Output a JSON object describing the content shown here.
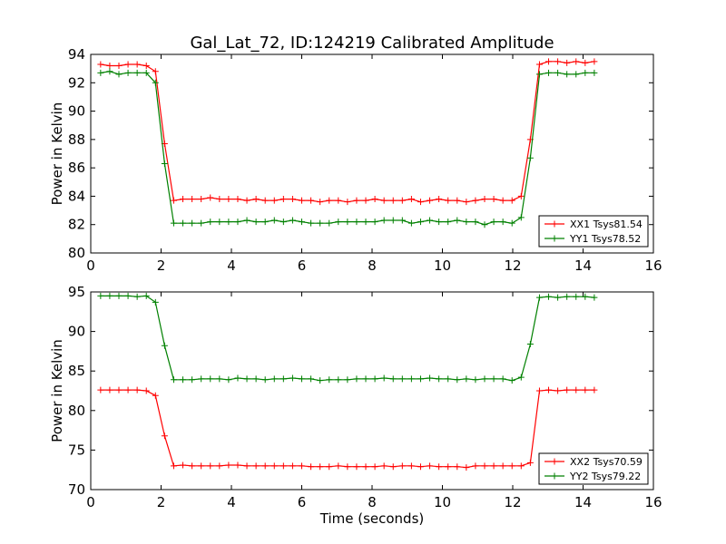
{
  "title": "Gal_Lat_72, ID:124219 Calibrated Amplitude",
  "chart_data": [
    {
      "type": "line",
      "xlabel": "",
      "ylabel": "Power in Kelvin",
      "xlim": [
        0,
        16
      ],
      "ylim": [
        80,
        94
      ],
      "xticks": [
        0,
        2,
        4,
        6,
        8,
        10,
        12,
        14,
        16
      ],
      "yticks": [
        80,
        82,
        84,
        86,
        88,
        90,
        92,
        94
      ],
      "grid": false,
      "legend_position": "bottom-right",
      "x": [
        0.28,
        0.54,
        0.8,
        1.06,
        1.32,
        1.58,
        1.84,
        2.1,
        2.36,
        2.62,
        2.88,
        3.14,
        3.4,
        3.66,
        3.92,
        4.18,
        4.44,
        4.7,
        4.96,
        5.22,
        5.48,
        5.74,
        6.0,
        6.26,
        6.52,
        6.78,
        7.04,
        7.3,
        7.56,
        7.82,
        8.08,
        8.34,
        8.6,
        8.86,
        9.12,
        9.38,
        9.64,
        9.9,
        10.16,
        10.42,
        10.68,
        10.94,
        11.2,
        11.46,
        11.72,
        11.98,
        12.24,
        12.5,
        12.76,
        13.02,
        13.28,
        13.54,
        13.8,
        14.06,
        14.32
      ],
      "series": [
        {
          "name": "XX1 Tsys81.54",
          "color": "#ff0000",
          "values": [
            93.3,
            93.2,
            93.2,
            93.3,
            93.3,
            93.2,
            92.8,
            87.7,
            83.7,
            83.8,
            83.8,
            83.8,
            83.9,
            83.8,
            83.8,
            83.8,
            83.7,
            83.8,
            83.7,
            83.7,
            83.8,
            83.8,
            83.7,
            83.7,
            83.6,
            83.7,
            83.7,
            83.6,
            83.7,
            83.7,
            83.8,
            83.7,
            83.7,
            83.7,
            83.8,
            83.6,
            83.7,
            83.8,
            83.7,
            83.7,
            83.6,
            83.7,
            83.8,
            83.8,
            83.7,
            83.7,
            84.0,
            88.0,
            93.3,
            93.5,
            93.5,
            93.4,
            93.5,
            93.4,
            93.5
          ]
        },
        {
          "name": "YY1 Tsys78.52",
          "color": "#008000",
          "values": [
            92.7,
            92.8,
            92.6,
            92.7,
            92.7,
            92.7,
            92.0,
            86.3,
            82.1,
            82.1,
            82.1,
            82.1,
            82.2,
            82.2,
            82.2,
            82.2,
            82.3,
            82.2,
            82.2,
            82.3,
            82.2,
            82.3,
            82.2,
            82.1,
            82.1,
            82.1,
            82.2,
            82.2,
            82.2,
            82.2,
            82.2,
            82.3,
            82.3,
            82.3,
            82.1,
            82.2,
            82.3,
            82.2,
            82.2,
            82.3,
            82.2,
            82.2,
            82.0,
            82.2,
            82.2,
            82.1,
            82.5,
            86.7,
            92.6,
            92.7,
            92.7,
            92.6,
            92.6,
            92.7,
            92.7
          ]
        }
      ]
    },
    {
      "type": "line",
      "xlabel": "Time (seconds)",
      "ylabel": "Power in Kelvin",
      "xlim": [
        0,
        16
      ],
      "ylim": [
        70,
        95
      ],
      "xticks": [
        0,
        2,
        4,
        6,
        8,
        10,
        12,
        14,
        16
      ],
      "yticks": [
        70,
        75,
        80,
        85,
        90,
        95
      ],
      "grid": false,
      "legend_position": "bottom-right",
      "x": [
        0.28,
        0.54,
        0.8,
        1.06,
        1.32,
        1.58,
        1.84,
        2.1,
        2.36,
        2.62,
        2.88,
        3.14,
        3.4,
        3.66,
        3.92,
        4.18,
        4.44,
        4.7,
        4.96,
        5.22,
        5.48,
        5.74,
        6.0,
        6.26,
        6.52,
        6.78,
        7.04,
        7.3,
        7.56,
        7.82,
        8.08,
        8.34,
        8.6,
        8.86,
        9.12,
        9.38,
        9.64,
        9.9,
        10.16,
        10.42,
        10.68,
        10.94,
        11.2,
        11.46,
        11.72,
        11.98,
        12.24,
        12.5,
        12.76,
        13.02,
        13.28,
        13.54,
        13.8,
        14.06,
        14.32
      ],
      "series": [
        {
          "name": "XX2 Tsys70.59",
          "color": "#ff0000",
          "values": [
            82.6,
            82.6,
            82.6,
            82.6,
            82.6,
            82.5,
            81.9,
            76.8,
            73.0,
            73.1,
            73.0,
            73.0,
            73.0,
            73.0,
            73.1,
            73.1,
            73.0,
            73.0,
            73.0,
            73.0,
            73.0,
            73.0,
            73.0,
            72.9,
            72.9,
            72.9,
            73.0,
            72.9,
            72.9,
            72.9,
            72.9,
            73.0,
            72.9,
            73.0,
            73.0,
            72.9,
            73.0,
            72.9,
            72.9,
            72.9,
            72.8,
            73.0,
            73.0,
            73.0,
            73.0,
            73.0,
            73.0,
            73.4,
            82.5,
            82.6,
            82.5,
            82.6,
            82.6,
            82.6,
            82.6
          ]
        },
        {
          "name": "YY2 Tsys79.22",
          "color": "#008000",
          "values": [
            94.5,
            94.5,
            94.5,
            94.5,
            94.4,
            94.5,
            93.7,
            88.2,
            83.9,
            83.9,
            83.9,
            84.0,
            84.0,
            84.0,
            83.9,
            84.1,
            84.0,
            84.0,
            83.9,
            84.0,
            84.0,
            84.1,
            84.0,
            84.0,
            83.8,
            83.9,
            83.9,
            83.9,
            84.0,
            84.0,
            84.0,
            84.1,
            84.0,
            84.0,
            84.0,
            84.0,
            84.1,
            84.0,
            84.0,
            83.9,
            84.0,
            83.9,
            84.0,
            84.0,
            84.0,
            83.8,
            84.2,
            88.4,
            94.3,
            94.4,
            94.3,
            94.4,
            94.4,
            94.4,
            94.3
          ]
        }
      ]
    }
  ]
}
